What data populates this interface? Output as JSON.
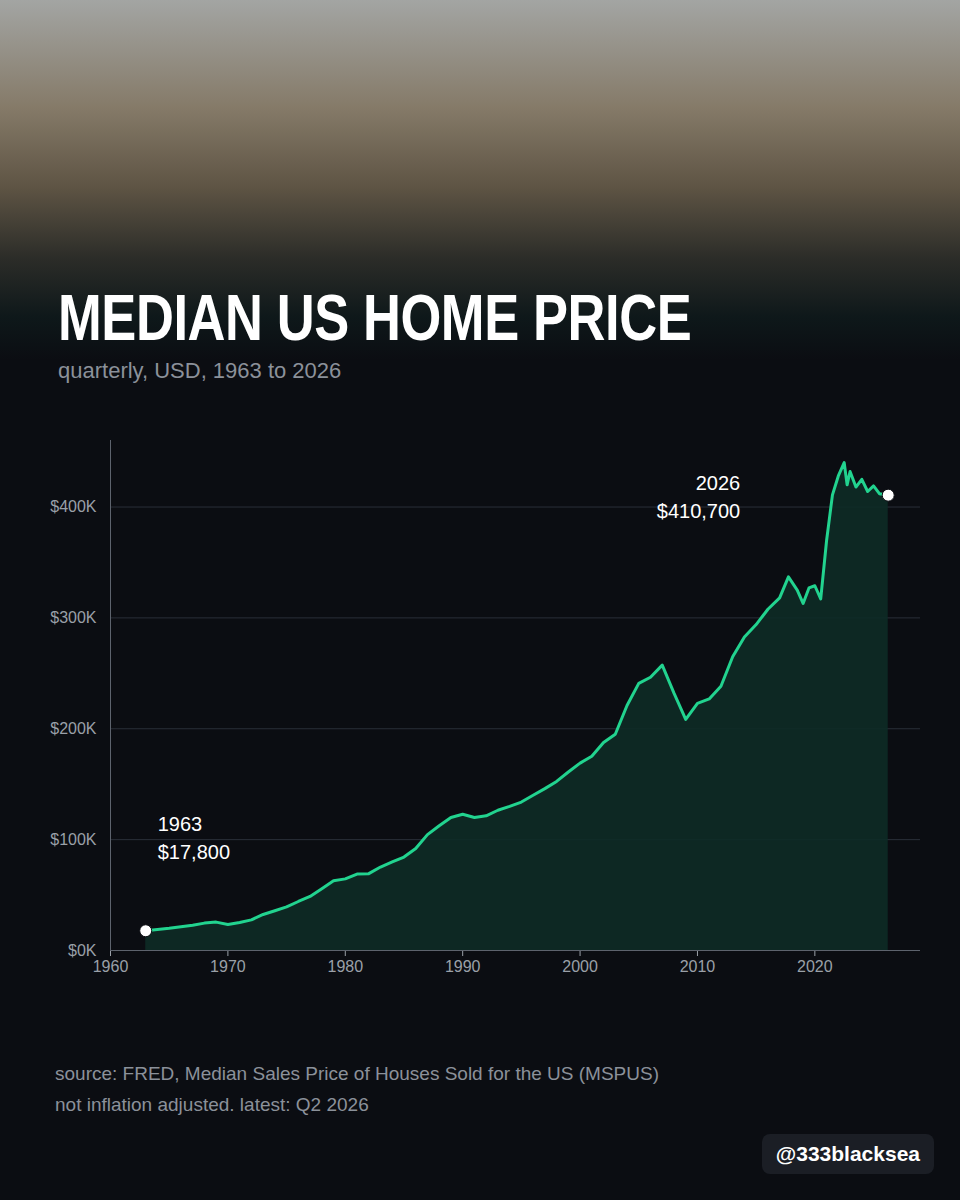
{
  "chart_data": {
    "type": "line",
    "title": "MEDIAN US HOME PRICE",
    "subtitle": "quarterly, USD, 1963 to 2026",
    "notes": [
      "source: FRED, Median Sales Price of Houses Sold for the US (MSPUS)",
      "not inflation adjusted. latest: Q2 2026"
    ],
    "handle": "@333blacksea",
    "color": "#22d38f",
    "grid": true,
    "x": [
      1963,
      1964,
      1965,
      1966,
      1967,
      1968,
      1969,
      1970,
      1971,
      1972,
      1973,
      1974,
      1975,
      1976,
      1977,
      1978,
      1979,
      1980,
      1981,
      1982,
      1983,
      1984,
      1985,
      1986,
      1987,
      1988,
      1989,
      1990,
      1991,
      1992,
      1993,
      1994,
      1995,
      1996,
      1997,
      1998,
      1999,
      2000,
      2001,
      2002,
      2003,
      2004,
      2005,
      2006,
      2007,
      2008,
      2009,
      2010,
      2011,
      2012,
      2013,
      2014,
      2015,
      2016,
      2017,
      2017.75,
      2018.5,
      2019,
      2019.5,
      2020,
      2020.5,
      2021,
      2021.5,
      2022,
      2022.5,
      2022.75,
      2023,
      2023.5,
      2024,
      2024.5,
      2025,
      2025.5,
      2026.25
    ],
    "values": [
      17800,
      18900,
      20000,
      21400,
      22700,
      24700,
      25600,
      23400,
      25200,
      27600,
      32500,
      35900,
      39300,
      44200,
      48800,
      55700,
      62900,
      64600,
      68900,
      69300,
      75300,
      79900,
      84300,
      92000,
      104500,
      112500,
      120000,
      122900,
      120000,
      121500,
      126500,
      130000,
      133900,
      140000,
      146000,
      152500,
      161000,
      169000,
      175200,
      187600,
      195000,
      221000,
      240900,
      246500,
      257400,
      232100,
      208400,
      222900,
      226900,
      238400,
      265000,
      282800,
      294000,
      307800,
      318000,
      337000,
      325000,
      313000,
      327000,
      329000,
      317100,
      369800,
      411000,
      428000,
      440000,
      420000,
      432000,
      418000,
      425000,
      414000,
      419000,
      412000,
      410700
    ],
    "xlim": [
      1960,
      2029
    ],
    "xticks": [
      1960,
      1970,
      1980,
      1990,
      2000,
      2010,
      2020
    ],
    "ylim": [
      0,
      460000
    ],
    "yticks": [
      {
        "value": 0,
        "label": "$0K"
      },
      {
        "value": 100000,
        "label": "$100K"
      },
      {
        "value": 200000,
        "label": "$200K"
      },
      {
        "value": 300000,
        "label": "$300K"
      },
      {
        "value": 400000,
        "label": "$400K"
      }
    ],
    "annotations": [
      {
        "x": 1963,
        "y": 17800,
        "lines": [
          "1963",
          "$17,800"
        ]
      },
      {
        "x": 2026.25,
        "y": 410700,
        "lines": [
          "2026",
          "$410,700"
        ]
      }
    ]
  }
}
